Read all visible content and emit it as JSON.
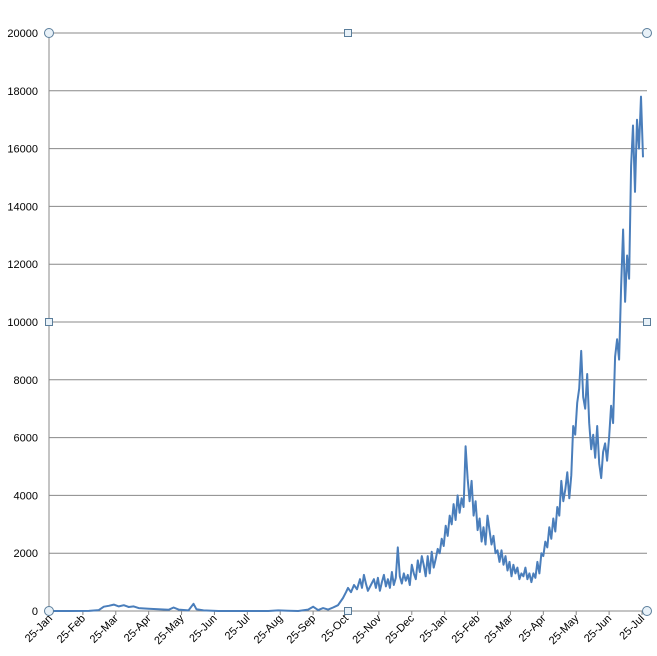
{
  "chart_data": {
    "type": "line",
    "title": "",
    "xlabel": "",
    "ylabel": "",
    "ylim": [
      0,
      20000
    ],
    "y_ticks": [
      0,
      2000,
      4000,
      6000,
      8000,
      10000,
      12000,
      14000,
      16000,
      18000,
      20000
    ],
    "y_tick_labels": [
      "0",
      "2000",
      "4000",
      "6000",
      "8000",
      "10000",
      "12000",
      "14000",
      "16000",
      "18000",
      "20000"
    ],
    "x_tick_labels": [
      "25-Jan",
      "25-Feb",
      "25-Mar",
      "25-Apr",
      "25-May",
      "25-Jun",
      "25-Jul",
      "25-Aug",
      "25-Sep",
      "25-Oct",
      "25-Nov",
      "25-Dec",
      "25-Jan",
      "25-Feb",
      "25-Mar",
      "25-Apr",
      "25-May",
      "25-Jun",
      "25-Jul"
    ],
    "grid": true,
    "legend": "none",
    "line_color": "#4a7ebb",
    "series": [
      {
        "values": [
          [
            0,
            0
          ],
          [
            20,
            0
          ],
          [
            40,
            5
          ],
          [
            50,
            30
          ],
          [
            55,
            150
          ],
          [
            60,
            180
          ],
          [
            65,
            220
          ],
          [
            70,
            160
          ],
          [
            75,
            200
          ],
          [
            80,
            140
          ],
          [
            85,
            160
          ],
          [
            90,
            100
          ],
          [
            100,
            80
          ],
          [
            110,
            60
          ],
          [
            120,
            40
          ],
          [
            125,
            120
          ],
          [
            130,
            50
          ],
          [
            140,
            20
          ],
          [
            145,
            250
          ],
          [
            148,
            60
          ],
          [
            155,
            20
          ],
          [
            170,
            0
          ],
          [
            200,
            0
          ],
          [
            220,
            0
          ],
          [
            230,
            20
          ],
          [
            240,
            10
          ],
          [
            250,
            0
          ],
          [
            260,
            50
          ],
          [
            265,
            150
          ],
          [
            270,
            30
          ],
          [
            275,
            100
          ],
          [
            280,
            50
          ],
          [
            285,
            120
          ],
          [
            290,
            200
          ],
          [
            295,
            450
          ],
          [
            298,
            650
          ],
          [
            300,
            800
          ],
          [
            303,
            650
          ],
          [
            306,
            900
          ],
          [
            309,
            750
          ],
          [
            312,
            1100
          ],
          [
            314,
            800
          ],
          [
            316,
            1250
          ],
          [
            318,
            950
          ],
          [
            320,
            700
          ],
          [
            323,
            900
          ],
          [
            326,
            1100
          ],
          [
            328,
            800
          ],
          [
            330,
            1150
          ],
          [
            332,
            700
          ],
          [
            334,
            1000
          ],
          [
            336,
            1250
          ],
          [
            338,
            850
          ],
          [
            340,
            1100
          ],
          [
            342,
            800
          ],
          [
            344,
            1350
          ],
          [
            346,
            900
          ],
          [
            348,
            1150
          ],
          [
            350,
            2200
          ],
          [
            352,
            1200
          ],
          [
            354,
            950
          ],
          [
            356,
            1300
          ],
          [
            358,
            1050
          ],
          [
            360,
            1250
          ],
          [
            362,
            900
          ],
          [
            364,
            1600
          ],
          [
            366,
            1300
          ],
          [
            368,
            1100
          ],
          [
            370,
            1750
          ],
          [
            372,
            1350
          ],
          [
            374,
            1900
          ],
          [
            376,
            1600
          ],
          [
            378,
            1200
          ],
          [
            380,
            1900
          ],
          [
            382,
            1300
          ],
          [
            384,
            2050
          ],
          [
            386,
            1500
          ],
          [
            388,
            1800
          ],
          [
            390,
            2150
          ],
          [
            392,
            2000
          ],
          [
            394,
            2500
          ],
          [
            396,
            2250
          ],
          [
            398,
            2950
          ],
          [
            400,
            2600
          ],
          [
            402,
            3300
          ],
          [
            404,
            3000
          ],
          [
            406,
            3700
          ],
          [
            408,
            3150
          ],
          [
            410,
            4000
          ],
          [
            412,
            3400
          ],
          [
            414,
            3900
          ],
          [
            416,
            3600
          ],
          [
            418,
            5700
          ],
          [
            420,
            4600
          ],
          [
            422,
            3800
          ],
          [
            424,
            4500
          ],
          [
            426,
            3300
          ],
          [
            428,
            3800
          ],
          [
            430,
            2800
          ],
          [
            432,
            3200
          ],
          [
            434,
            2400
          ],
          [
            436,
            2900
          ],
          [
            438,
            2300
          ],
          [
            440,
            3300
          ],
          [
            442,
            2800
          ],
          [
            444,
            2300
          ],
          [
            446,
            2600
          ],
          [
            448,
            2000
          ],
          [
            450,
            2100
          ],
          [
            452,
            1700
          ],
          [
            454,
            2100
          ],
          [
            456,
            1600
          ],
          [
            458,
            1900
          ],
          [
            460,
            1400
          ],
          [
            462,
            1700
          ],
          [
            464,
            1200
          ],
          [
            466,
            1600
          ],
          [
            468,
            1300
          ],
          [
            470,
            1500
          ],
          [
            472,
            1100
          ],
          [
            474,
            1300
          ],
          [
            476,
            1200
          ],
          [
            478,
            1500
          ],
          [
            480,
            1100
          ],
          [
            482,
            1300
          ],
          [
            484,
            1000
          ],
          [
            486,
            1300
          ],
          [
            488,
            1150
          ],
          [
            490,
            1700
          ],
          [
            492,
            1300
          ],
          [
            494,
            2000
          ],
          [
            496,
            1900
          ],
          [
            498,
            2400
          ],
          [
            500,
            2200
          ],
          [
            502,
            2900
          ],
          [
            504,
            2500
          ],
          [
            506,
            3200
          ],
          [
            508,
            2750
          ],
          [
            510,
            3600
          ],
          [
            512,
            3300
          ],
          [
            514,
            4500
          ],
          [
            516,
            3800
          ],
          [
            518,
            4200
          ],
          [
            520,
            4800
          ],
          [
            522,
            3900
          ],
          [
            524,
            4700
          ],
          [
            526,
            6400
          ],
          [
            528,
            6100
          ],
          [
            530,
            7200
          ],
          [
            532,
            7700
          ],
          [
            534,
            9000
          ],
          [
            536,
            7400
          ],
          [
            538,
            7000
          ],
          [
            540,
            8200
          ],
          [
            542,
            6500
          ],
          [
            544,
            5600
          ],
          [
            546,
            6100
          ],
          [
            548,
            5300
          ],
          [
            550,
            6400
          ],
          [
            552,
            5100
          ],
          [
            554,
            4600
          ],
          [
            556,
            5500
          ],
          [
            558,
            5800
          ],
          [
            560,
            5200
          ],
          [
            562,
            6000
          ],
          [
            564,
            7100
          ],
          [
            566,
            6500
          ],
          [
            568,
            8800
          ],
          [
            570,
            9400
          ],
          [
            572,
            8700
          ],
          [
            574,
            11200
          ],
          [
            576,
            13200
          ],
          [
            578,
            10700
          ],
          [
            580,
            12300
          ],
          [
            582,
            11500
          ],
          [
            584,
            15400
          ],
          [
            586,
            16800
          ],
          [
            588,
            14500
          ],
          [
            590,
            17000
          ],
          [
            592,
            16000
          ],
          [
            594,
            17800
          ],
          [
            596,
            15700
          ]
        ]
      }
    ]
  }
}
